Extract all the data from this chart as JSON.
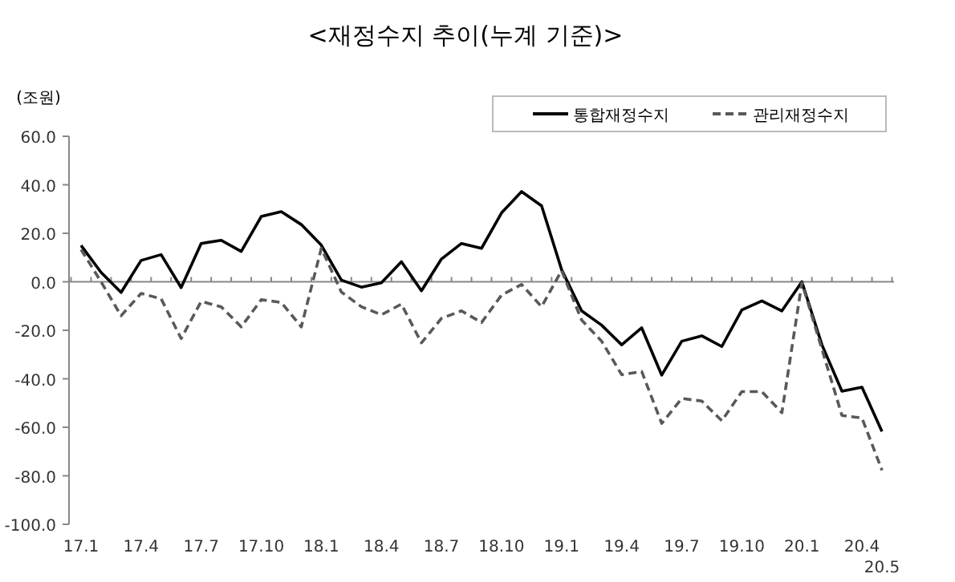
{
  "chart_data": {
    "type": "line",
    "title": "<재정수지 추이(누계 기준)>",
    "ylabel": "(조원)",
    "categories": [
      "17.1",
      null,
      null,
      "17.4",
      null,
      null,
      "17.7",
      null,
      null,
      "17.10",
      null,
      null,
      "18.1",
      null,
      null,
      "18.4",
      null,
      null,
      "18.7",
      null,
      null,
      "18.10",
      null,
      null,
      "19.1",
      null,
      null,
      "19.4",
      null,
      null,
      "19.7",
      null,
      null,
      "19.10",
      null,
      null,
      "20.1",
      null,
      null,
      "20.4",
      "20.5"
    ],
    "series": [
      {
        "name": "통합재정수지",
        "color": "#000000",
        "line_style": "solid",
        "values": [
          15,
          3.9,
          -4.4,
          8.8,
          11.2,
          -2.4,
          15.8,
          17.1,
          12.5,
          26.9,
          28.9,
          23.6,
          15.1,
          0.7,
          -2.2,
          -0.4,
          8.3,
          -3.7,
          9.4,
          15.8,
          13.8,
          28.4,
          37.2,
          31.3,
          5,
          -12,
          -17.9,
          -26,
          -19,
          -38.5,
          -24.5,
          -22.3,
          -26.7,
          -11.6,
          -7.9,
          -12,
          0,
          -26,
          -45.1,
          -43.5,
          -61.7
        ]
      },
      {
        "name": "관리재정수지",
        "color": "#595959",
        "line_style": "dashed",
        "values": [
          13.3,
          0,
          -14,
          -4.8,
          -7,
          -23.4,
          -8.1,
          -10.3,
          -18.6,
          -7.4,
          -8.5,
          -18.6,
          13.8,
          -4.2,
          -10.3,
          -13.6,
          -9.2,
          -25.2,
          -15.1,
          -12,
          -16.8,
          -5.5,
          -1.1,
          -10.3,
          4.6,
          -15.8,
          -24.5,
          -38.3,
          -37,
          -58.4,
          -48.1,
          -49.2,
          -57.3,
          -45.3,
          -45.3,
          -54,
          -0.4,
          -27.8,
          -55.1,
          -56.2,
          -77.7
        ]
      }
    ],
    "ylim": [
      -100,
      60
    ],
    "yticks": [
      {
        "value": 60,
        "label": "60.0"
      },
      {
        "value": 40,
        "label": "40.0"
      },
      {
        "value": 20,
        "label": "20.0"
      },
      {
        "value": 0,
        "label": "0.0"
      },
      {
        "value": -20,
        "label": "-20.0"
      },
      {
        "value": -40,
        "label": "-40.0"
      },
      {
        "value": -60,
        "label": "-60.0"
      },
      {
        "value": -80,
        "label": "-80.0"
      },
      {
        "value": -100,
        "label": "-100.0"
      }
    ],
    "ref_lines": [
      {
        "axis": "y",
        "value": 0,
        "color": "#888888"
      }
    ],
    "grid": false,
    "legend": "top right",
    "marker": "none"
  }
}
